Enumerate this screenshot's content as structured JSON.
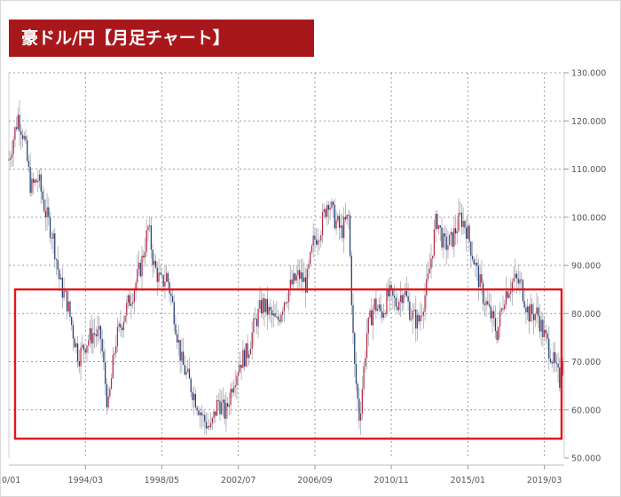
{
  "title": "豪ドル/円【月足チャート】",
  "colors": {
    "banner": "#a8171b",
    "up": "#b52a45",
    "down": "#1f3f74",
    "grid": "#9c9c9c",
    "highlight": "#e3141b"
  },
  "chart_data": {
    "type": "candlestick",
    "title": "豪ドル/円【月足チャート】",
    "xlabel": "",
    "ylabel": "",
    "ylim": [
      50,
      130
    ],
    "y_ticks": [
      "130.000",
      "120.000",
      "110.000",
      "100.000",
      "90.000",
      "80.000",
      "70.000",
      "60.000",
      "50.000"
    ],
    "x_ticks": [
      {
        "label": "0/01",
        "t": 1990.0
      },
      {
        "label": "1994/03",
        "t": 1994.17
      },
      {
        "label": "1998/05",
        "t": 1998.33
      },
      {
        "label": "2002/07",
        "t": 2002.5
      },
      {
        "label": "2006/09",
        "t": 2006.67
      },
      {
        "label": "2010/11",
        "t": 2010.83
      },
      {
        "label": "2015/01",
        "t": 2015.0
      },
      {
        "label": "2019/03",
        "t": 2019.17
      }
    ],
    "x_range": [
      1990.0,
      2020.25
    ],
    "grid": true,
    "highlight_band": [
      54,
      85
    ],
    "price_path": [
      [
        1990.0,
        112
      ],
      [
        1990.5,
        121
      ],
      [
        1990.8,
        117
      ],
      [
        1991.2,
        106
      ],
      [
        1991.6,
        108
      ],
      [
        1992.0,
        101
      ],
      [
        1992.4,
        96
      ],
      [
        1992.8,
        86
      ],
      [
        1993.2,
        82
      ],
      [
        1993.5,
        76
      ],
      [
        1993.8,
        71
      ],
      [
        1994.2,
        74
      ],
      [
        1994.6,
        76
      ],
      [
        1995.0,
        75
      ],
      [
        1995.4,
        60
      ],
      [
        1995.8,
        74
      ],
      [
        1996.3,
        80
      ],
      [
        1996.8,
        85
      ],
      [
        1997.2,
        90
      ],
      [
        1997.6,
        98
      ],
      [
        1997.9,
        90
      ],
      [
        1998.3,
        86
      ],
      [
        1998.6,
        88
      ],
      [
        1999.0,
        80
      ],
      [
        1999.4,
        70
      ],
      [
        1999.8,
        66
      ],
      [
        2000.2,
        62
      ],
      [
        2000.6,
        58
      ],
      [
        2001.0,
        56
      ],
      [
        2001.4,
        62
      ],
      [
        2001.8,
        59
      ],
      [
        2002.2,
        66
      ],
      [
        2002.6,
        70
      ],
      [
        2003.0,
        72
      ],
      [
        2003.4,
        78
      ],
      [
        2003.8,
        82
      ],
      [
        2004.2,
        80
      ],
      [
        2004.6,
        78
      ],
      [
        2005.0,
        83
      ],
      [
        2005.4,
        86
      ],
      [
        2005.8,
        88
      ],
      [
        2006.2,
        86
      ],
      [
        2006.6,
        95
      ],
      [
        2007.0,
        98
      ],
      [
        2007.4,
        104
      ],
      [
        2007.7,
        100
      ],
      [
        2008.1,
        97
      ],
      [
        2008.5,
        100
      ],
      [
        2008.8,
        70
      ],
      [
        2009.1,
        58
      ],
      [
        2009.5,
        76
      ],
      [
        2009.9,
        82
      ],
      [
        2010.3,
        80
      ],
      [
        2010.7,
        84
      ],
      [
        2011.1,
        82
      ],
      [
        2011.5,
        85
      ],
      [
        2011.9,
        80
      ],
      [
        2012.3,
        78
      ],
      [
        2012.8,
        86
      ],
      [
        2013.3,
        100
      ],
      [
        2013.7,
        94
      ],
      [
        2014.1,
        95
      ],
      [
        2014.6,
        100
      ],
      [
        2014.9,
        98
      ],
      [
        2015.4,
        90
      ],
      [
        2015.8,
        84
      ],
      [
        2016.2,
        80
      ],
      [
        2016.6,
        76
      ],
      [
        2017.0,
        84
      ],
      [
        2017.5,
        87
      ],
      [
        2017.9,
        86
      ],
      [
        2018.3,
        80
      ],
      [
        2018.8,
        80
      ],
      [
        2019.1,
        76
      ],
      [
        2019.5,
        72
      ],
      [
        2019.8,
        68
      ],
      [
        2020.0,
        66
      ],
      [
        2020.2,
        73
      ]
    ]
  }
}
